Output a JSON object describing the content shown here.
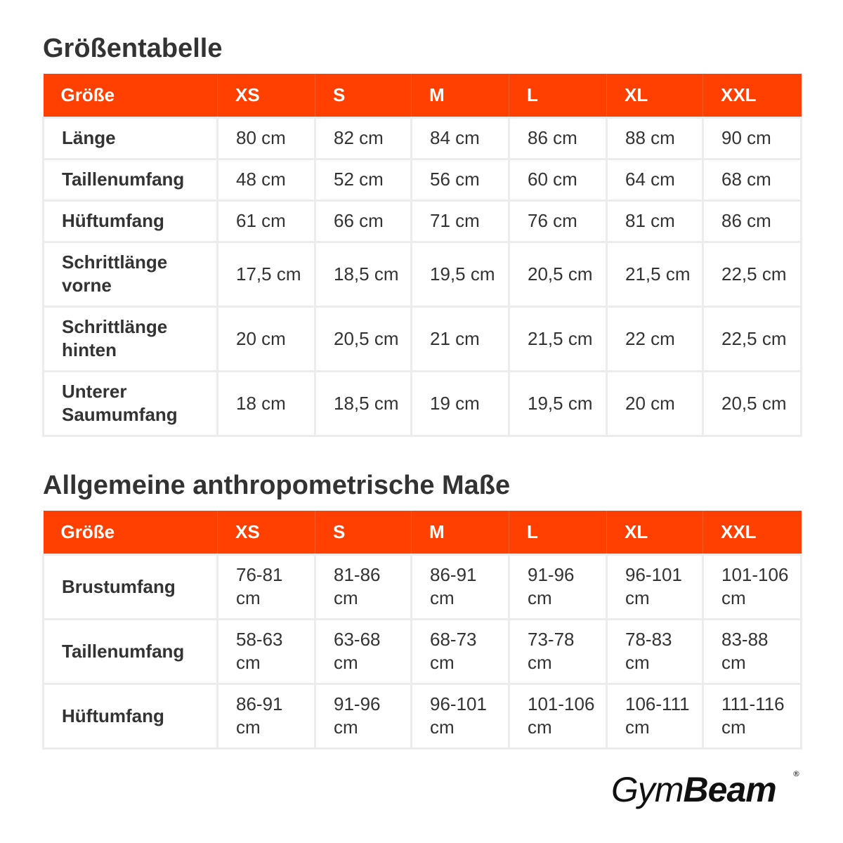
{
  "size_table": {
    "title": "Größentabelle",
    "header": [
      "Größe",
      "XS",
      "S",
      "M",
      "L",
      "XL",
      "XXL"
    ],
    "rows": [
      {
        "label": "Länge",
        "values": [
          "80 cm",
          "82 cm",
          "84 cm",
          "86 cm",
          "88 cm",
          "90 cm"
        ]
      },
      {
        "label": "Taillenumfang",
        "values": [
          "48 cm",
          "52 cm",
          "56 cm",
          "60 cm",
          "64 cm",
          "68 cm"
        ]
      },
      {
        "label": "Hüftumfang",
        "values": [
          "61 cm",
          "66 cm",
          "71 cm",
          "76 cm",
          "81 cm",
          "86 cm"
        ]
      },
      {
        "label": "Schrittlänge vorne",
        "values": [
          "17,5 cm",
          "18,5 cm",
          "19,5 cm",
          "20,5 cm",
          "21,5 cm",
          "22,5 cm"
        ]
      },
      {
        "label": "Schrittlänge hinten",
        "values": [
          "20 cm",
          "20,5 cm",
          "21 cm",
          "21,5 cm",
          "22 cm",
          "22,5 cm"
        ]
      },
      {
        "label": "Unterer Saumumfang",
        "values": [
          "18 cm",
          "18,5 cm",
          "19 cm",
          "19,5 cm",
          "20 cm",
          "20,5 cm"
        ]
      }
    ]
  },
  "anthro_table": {
    "title": "Allgemeine anthropometrische Maße",
    "header": [
      "Größe",
      "XS",
      "S",
      "M",
      "L",
      "XL",
      "XXL"
    ],
    "rows": [
      {
        "label": "Brustumfang",
        "values": [
          "76-81 cm",
          "81-86 cm",
          "86-91 cm",
          "91-96 cm",
          "96-101 cm",
          "101-106 cm"
        ]
      },
      {
        "label": "Taillenumfang",
        "values": [
          "58-63 cm",
          "63-68 cm",
          "68-73 cm",
          "73-78 cm",
          "78-83 cm",
          "83-88 cm"
        ]
      },
      {
        "label": "Hüftumfang",
        "values": [
          "86-91 cm",
          "91-96 cm",
          "96-101 cm",
          "101-106 cm",
          "106-111 cm",
          "111-116 cm"
        ]
      }
    ]
  },
  "logo": {
    "part1": "Gym",
    "part2": "Beam",
    "registered": "®"
  },
  "colors": {
    "header_bg": "#ff4000",
    "header_text": "#ffffff",
    "cell_border": "#ececec",
    "text": "#333333"
  }
}
